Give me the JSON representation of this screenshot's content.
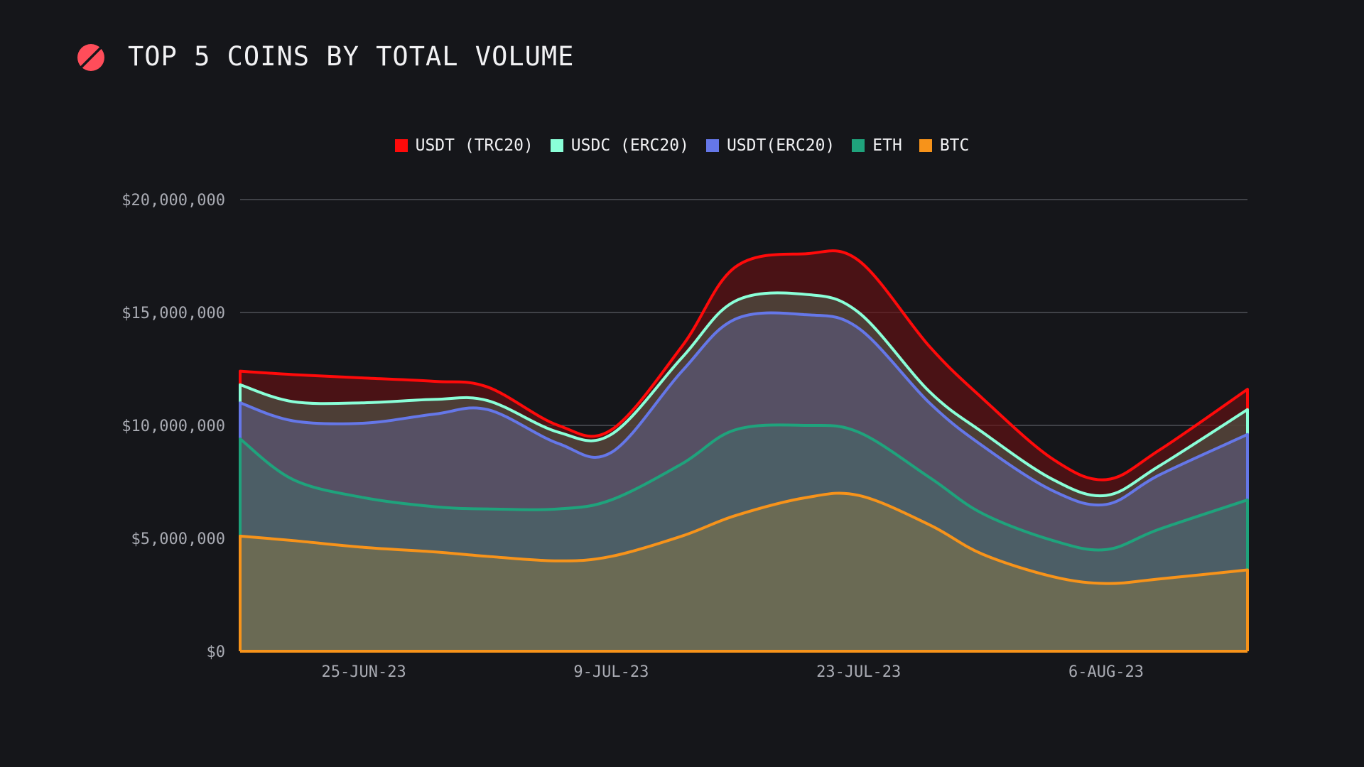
{
  "header": {
    "title": "TOP 5 COINS BY TOTAL VOLUME",
    "logo_icon": "slashed-circle-logo-icon",
    "logo_color": "#ff4d5a"
  },
  "chart_data": {
    "type": "area",
    "stacked": false,
    "title": "TOP 5 COINS BY TOTAL VOLUME",
    "xlabel": "",
    "ylabel": "",
    "x": [
      "2023-06-18",
      "2023-06-21",
      "2023-06-25",
      "2023-06-29",
      "2023-07-02",
      "2023-07-06",
      "2023-07-09",
      "2023-07-13",
      "2023-07-16",
      "2023-07-20",
      "2023-07-23",
      "2023-07-27",
      "2023-07-30",
      "2023-08-03",
      "2023-08-06",
      "2023-08-09",
      "2023-08-14"
    ],
    "x_ticks": [
      "25-JUN-23",
      "9-JUL-23",
      "23-JUL-23",
      "6-AUG-23"
    ],
    "x_tick_dates": [
      "2023-06-25",
      "2023-07-09",
      "2023-07-23",
      "2023-08-06"
    ],
    "y_ticks": [
      "$0",
      "$5,000,000",
      "$10,000,000",
      "$15,000,000",
      "$20,000,000"
    ],
    "ylim": [
      0,
      20000000
    ],
    "grid": true,
    "legend": "top-center",
    "series": [
      {
        "name": "USDT (TRC20)",
        "color": "#ff0a0a",
        "values": [
          12400000,
          12250000,
          12100000,
          11950000,
          11700000,
          10000000,
          9800000,
          13500000,
          17000000,
          17600000,
          17300000,
          13500000,
          11200000,
          8500000,
          7600000,
          8900000,
          11600000
        ]
      },
      {
        "name": "USDC (ERC20)",
        "color": "#8affd8",
        "values": [
          11800000,
          11050000,
          11000000,
          11150000,
          11100000,
          9700000,
          9600000,
          13000000,
          15500000,
          15800000,
          15000000,
          11500000,
          9700000,
          7600000,
          6900000,
          8200000,
          10700000
        ]
      },
      {
        "name": "USDT(ERC20)",
        "color": "#6577e8",
        "values": [
          11000000,
          10200000,
          10100000,
          10500000,
          10700000,
          9200000,
          8800000,
          12400000,
          14700000,
          14900000,
          14300000,
          11000000,
          9100000,
          7100000,
          6500000,
          7800000,
          9600000
        ]
      },
      {
        "name": "ETH",
        "color": "#1fa37c",
        "values": [
          9400000,
          7600000,
          6800000,
          6400000,
          6300000,
          6300000,
          6700000,
          8300000,
          9800000,
          10000000,
          9700000,
          7700000,
          6100000,
          4900000,
          4500000,
          5400000,
          6700000
        ]
      },
      {
        "name": "BTC",
        "color": "#f7931a",
        "values": [
          5100000,
          4900000,
          4600000,
          4400000,
          4200000,
          4000000,
          4200000,
          5100000,
          6000000,
          6800000,
          6900000,
          5600000,
          4300000,
          3300000,
          3000000,
          3200000,
          3600000
        ]
      }
    ]
  }
}
